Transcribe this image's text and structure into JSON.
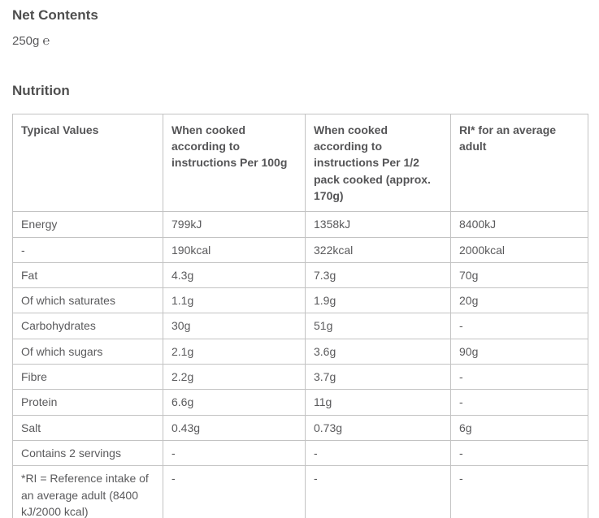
{
  "net_contents": {
    "heading": "Net Contents",
    "value": "250g ℮"
  },
  "nutrition": {
    "heading": "Nutrition",
    "table": {
      "headers": [
        "Typical Values",
        "When cooked according to instructions Per 100g",
        "When cooked according to instructions Per 1/2 pack cooked (approx. 170g)",
        "RI* for an average adult"
      ],
      "rows": [
        [
          "Energy",
          "799kJ",
          "1358kJ",
          "8400kJ"
        ],
        [
          "-",
          "190kcal",
          "322kcal",
          "2000kcal"
        ],
        [
          "Fat",
          "4.3g",
          "7.3g",
          "70g"
        ],
        [
          "Of which saturates",
          "1.1g",
          "1.9g",
          "20g"
        ],
        [
          "Carbohydrates",
          "30g",
          "51g",
          "-"
        ],
        [
          "Of which sugars",
          "2.1g",
          "3.6g",
          "90g"
        ],
        [
          "Fibre",
          "2.2g",
          "3.7g",
          "-"
        ],
        [
          "Protein",
          "6.6g",
          "11g",
          "-"
        ],
        [
          "Salt",
          "0.43g",
          "0.73g",
          "6g"
        ],
        [
          "Contains 2 servings",
          "-",
          "-",
          "-"
        ],
        [
          "*RI = Reference intake of an average adult (8400 kJ/2000 kcal)",
          "-",
          "-",
          "-"
        ]
      ]
    }
  },
  "colors": {
    "heading_text": "#4f4f4f",
    "body_text": "#5a5a5c",
    "table_border": "#c3c3c3",
    "background": "#ffffff"
  }
}
